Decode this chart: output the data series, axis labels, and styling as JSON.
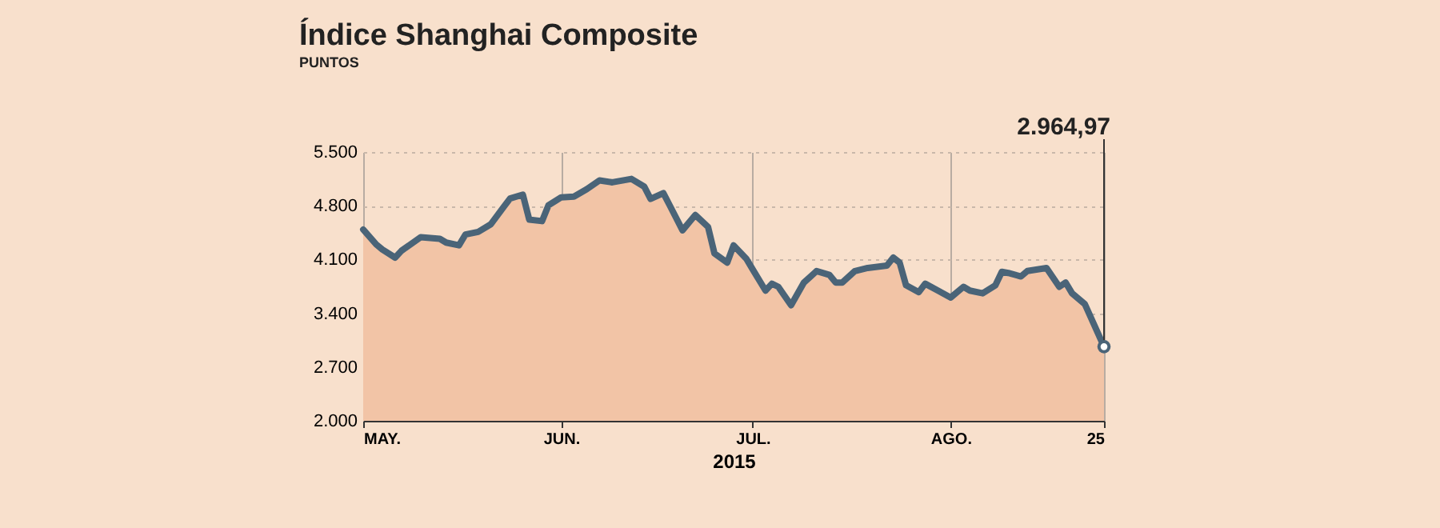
{
  "chart_data": {
    "type": "area",
    "title": "Índice Shanghai Composite",
    "subtitle": "PUNTOS",
    "xlabel": "2015",
    "x": [
      "2015-05-01",
      "2015-05-03",
      "2015-05-04",
      "2015-05-06",
      "2015-05-07",
      "2015-05-10",
      "2015-05-13",
      "2015-05-14",
      "2015-05-16",
      "2015-05-17",
      "2015-05-19",
      "2015-05-21",
      "2015-05-23",
      "2015-05-24",
      "2015-05-26",
      "2015-05-27",
      "2015-05-29",
      "2015-05-30",
      "2015-06-01",
      "2015-06-03",
      "2015-06-05",
      "2015-06-07",
      "2015-06-09",
      "2015-06-12",
      "2015-06-14",
      "2015-06-15",
      "2015-06-17",
      "2015-06-18",
      "2015-06-20",
      "2015-06-22",
      "2015-06-24",
      "2015-06-25",
      "2015-06-27",
      "2015-06-28",
      "2015-06-30",
      "2015-07-01",
      "2015-07-03",
      "2015-07-04",
      "2015-07-05",
      "2015-07-07",
      "2015-07-09",
      "2015-07-11",
      "2015-07-13",
      "2015-07-14",
      "2015-07-15",
      "2015-07-17",
      "2015-07-19",
      "2015-07-22",
      "2015-07-23",
      "2015-07-24",
      "2015-07-25",
      "2015-07-27",
      "2015-07-28",
      "2015-07-30",
      "2015-08-01",
      "2015-08-03",
      "2015-08-04",
      "2015-08-06",
      "2015-08-08",
      "2015-08-09",
      "2015-08-10",
      "2015-08-12",
      "2015-08-13",
      "2015-08-16",
      "2015-08-18",
      "2015-08-19",
      "2015-08-20",
      "2015-08-22",
      "2015-08-25"
    ],
    "series": [
      {
        "color": "#f2c4a6",
        "values": [
          4490,
          4300,
          4230,
          4125,
          4215,
          4390,
          4370,
          4320,
          4285,
          4425,
          4460,
          4560,
          4785,
          4895,
          4945,
          4620,
          4600,
          4805,
          4910,
          4920,
          5015,
          5130,
          5105,
          5150,
          5050,
          4890,
          4965,
          4805,
          4480,
          4680,
          4525,
          4180,
          4060,
          4285,
          4110,
          3970,
          3695,
          3785,
          3745,
          3505,
          3800,
          3950,
          3900,
          3800,
          3800,
          3950,
          3990,
          4020,
          4125,
          4060,
          3765,
          3675,
          3785,
          3695,
          3605,
          3745,
          3695,
          3660,
          3765,
          3940,
          3925,
          3880,
          3950,
          3990,
          3745,
          3800,
          3660,
          3520,
          2964.97
        ]
      },
      {
        "type": "line",
        "color": "#4a6478",
        "values": [
          4490,
          4300,
          4230,
          4125,
          4215,
          4390,
          4370,
          4320,
          4285,
          4425,
          4460,
          4560,
          4785,
          4895,
          4945,
          4620,
          4600,
          4805,
          4910,
          4920,
          5015,
          5130,
          5105,
          5150,
          5050,
          4890,
          4965,
          4805,
          4480,
          4680,
          4525,
          4180,
          4060,
          4285,
          4110,
          3970,
          3695,
          3785,
          3745,
          3505,
          3800,
          3950,
          3900,
          3800,
          3800,
          3950,
          3990,
          4020,
          4125,
          4060,
          3765,
          3675,
          3785,
          3695,
          3605,
          3745,
          3695,
          3660,
          3765,
          3940,
          3925,
          3880,
          3950,
          3990,
          3745,
          3800,
          3660,
          3520,
          2964.97
        ]
      }
    ],
    "annotations": [
      "2.964,97"
    ],
    "xlim": [
      "2015-05-01",
      "2015-08-25"
    ],
    "xticks": [
      {
        "value": "2015-05-01",
        "label": "MAY."
      },
      {
        "value": "2015-06-01",
        "label": "JUN."
      },
      {
        "value": "2015-07-01",
        "label": "JUL."
      },
      {
        "value": "2015-08-01",
        "label": "AGO."
      },
      {
        "value": "2015-08-25",
        "label": "25"
      }
    ],
    "ylim": [
      2000,
      5500
    ],
    "yticks": [
      {
        "value": 2000,
        "label": "2.000"
      },
      {
        "value": 2700,
        "label": "2.700"
      },
      {
        "value": 3400,
        "label": "3.400"
      },
      {
        "value": 4100,
        "label": "4.100"
      },
      {
        "value": 4800,
        "label": "4.800"
      },
      {
        "value": 5500,
        "label": "5.500"
      }
    ],
    "grid": true,
    "marker": "none",
    "line_style": "solid"
  }
}
